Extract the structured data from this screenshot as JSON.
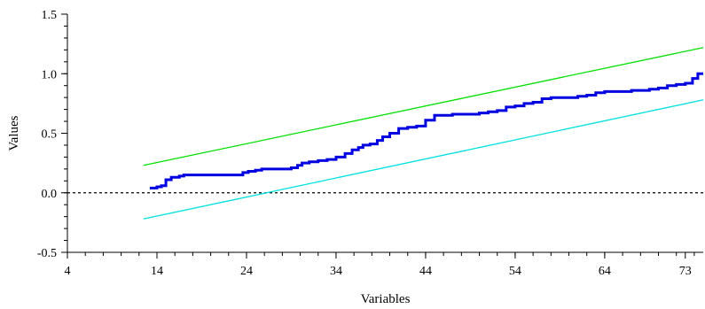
{
  "chart_data": {
    "type": "line",
    "xlabel": "Variables",
    "ylabel": "Values",
    "xlim": [
      4,
      75
    ],
    "ylim": [
      -0.5,
      1.5
    ],
    "x_ticks": [
      4,
      14,
      24,
      34,
      44,
      54,
      64,
      73
    ],
    "x_tick_labels": [
      "4",
      "14",
      "24",
      "34",
      "44",
      "54",
      "64",
      "73"
    ],
    "y_ticks": [
      -0.5,
      0.0,
      0.5,
      1.0,
      1.5
    ],
    "y_tick_labels": [
      "-0.5",
      "0.0",
      "0.5",
      "1.0",
      "1.5"
    ],
    "grid": false,
    "reference_line": {
      "y": 0.0,
      "style": "dashed",
      "color": "#000000"
    },
    "series": [
      {
        "color": "#0000e0",
        "step": true,
        "points": [
          [
            13.2,
            0.04
          ],
          [
            14.0,
            0.05
          ],
          [
            14.5,
            0.06
          ],
          [
            15.0,
            0.11
          ],
          [
            15.6,
            0.13
          ],
          [
            16.5,
            0.14
          ],
          [
            17.0,
            0.15
          ],
          [
            23.0,
            0.15
          ],
          [
            23.6,
            0.17
          ],
          [
            24.2,
            0.18
          ],
          [
            25.0,
            0.19
          ],
          [
            25.7,
            0.2
          ],
          [
            29.0,
            0.21
          ],
          [
            29.7,
            0.23
          ],
          [
            30.2,
            0.25
          ],
          [
            31.0,
            0.26
          ],
          [
            32.0,
            0.27
          ],
          [
            33.0,
            0.28
          ],
          [
            34.0,
            0.3
          ],
          [
            35.0,
            0.33
          ],
          [
            35.8,
            0.36
          ],
          [
            36.5,
            0.38
          ],
          [
            37.0,
            0.4
          ],
          [
            37.8,
            0.41
          ],
          [
            38.6,
            0.44
          ],
          [
            39.2,
            0.47
          ],
          [
            40.0,
            0.5
          ],
          [
            41.0,
            0.54
          ],
          [
            42.0,
            0.55
          ],
          [
            43.0,
            0.56
          ],
          [
            44.0,
            0.61
          ],
          [
            45.0,
            0.65
          ],
          [
            46.0,
            0.65
          ],
          [
            47.0,
            0.66
          ],
          [
            50.0,
            0.67
          ],
          [
            51.0,
            0.68
          ],
          [
            52.0,
            0.69
          ],
          [
            53.0,
            0.72
          ],
          [
            54.0,
            0.73
          ],
          [
            55.0,
            0.75
          ],
          [
            56.0,
            0.76
          ],
          [
            57.0,
            0.79
          ],
          [
            58.0,
            0.8
          ],
          [
            59.0,
            0.8
          ],
          [
            60.0,
            0.8
          ],
          [
            61.0,
            0.81
          ],
          [
            62.0,
            0.82
          ],
          [
            63.0,
            0.84
          ],
          [
            64.0,
            0.85
          ],
          [
            65.0,
            0.85
          ],
          [
            66.0,
            0.85
          ],
          [
            67.0,
            0.86
          ],
          [
            68.0,
            0.86
          ],
          [
            69.0,
            0.87
          ],
          [
            70.0,
            0.88
          ],
          [
            71.0,
            0.9
          ],
          [
            72.0,
            0.91
          ],
          [
            73.0,
            0.92
          ],
          [
            73.8,
            0.96
          ],
          [
            74.4,
            1.0
          ],
          [
            75.0,
            1.0
          ]
        ]
      },
      {
        "color": "#00e000",
        "points": [
          [
            12.5,
            0.23
          ],
          [
            75.0,
            1.22
          ]
        ]
      },
      {
        "color": "#00e0e0",
        "points": [
          [
            12.5,
            -0.22
          ],
          [
            75.0,
            0.78
          ]
        ]
      }
    ]
  }
}
